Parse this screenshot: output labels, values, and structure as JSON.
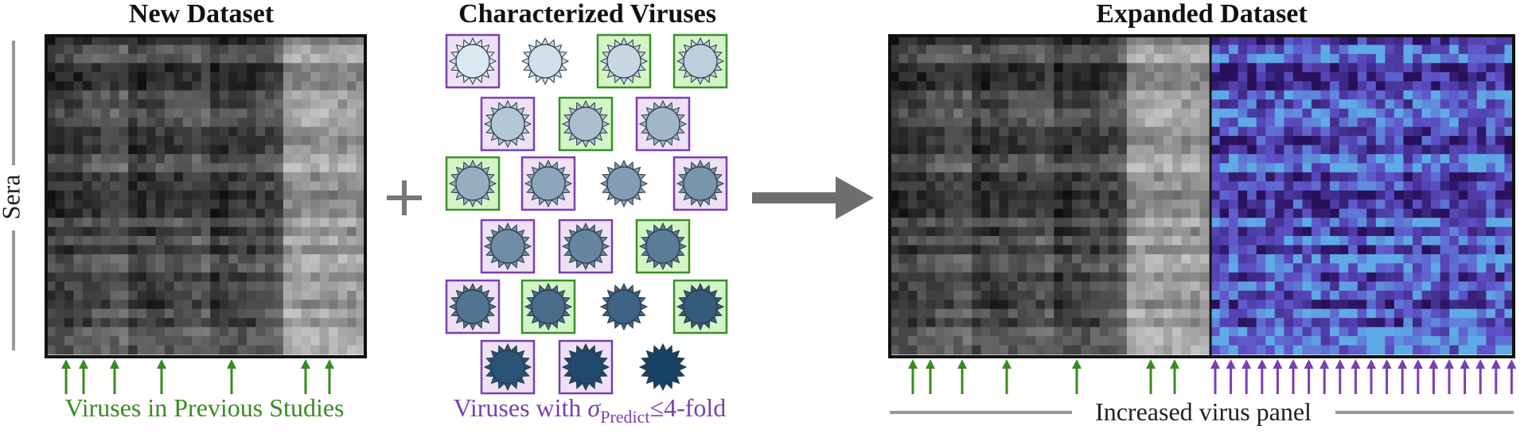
{
  "titles": {
    "new": "New Dataset",
    "characterized": "Characterized Viruses",
    "expanded": "Expanded Dataset"
  },
  "sera_label": "Sera",
  "green_caption": "Viruses in Previous Studies",
  "purple_caption": {
    "prefix": "Viruses with ",
    "symbol": "σ",
    "subscript": "Predict",
    "suffix": "≤4-fold"
  },
  "bottom_caption": "Increased virus panel"
}
